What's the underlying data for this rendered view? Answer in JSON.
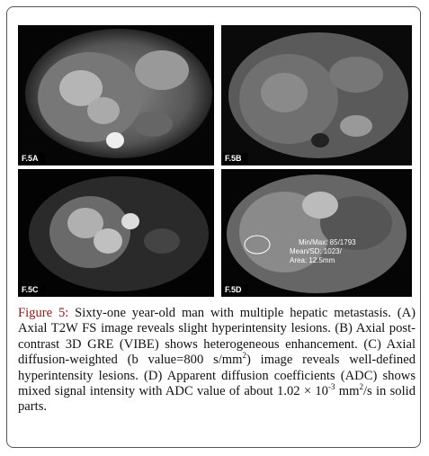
{
  "figure": {
    "panels": [
      {
        "label": "F.5A"
      },
      {
        "label": "F.5B"
      },
      {
        "label": "F.5C"
      },
      {
        "label": "F.5D",
        "roi_text": [
          "Min/Max: 85/1793",
          "Mean/SD: 1023/",
          "Area: 12.5mm"
        ]
      }
    ],
    "caption": {
      "label": "Figure 5:",
      "parts": [
        " Sixty-one year-old man with multiple hepatic metastasis. (A) Axial T2W FS image reveals slight hyperintensity lesions. (B) Axial post-contrast 3D GRE (VIBE) shows heterogeneous enhancement. (C) Axial diffusion-weighted (b value=800 s/mm",
        "2",
        ") image reveals well-defined hyperintensity lesions. (D) Apparent diffusion coefficients (ADC) shows mixed signal intensity with ADC value of about 1.02 × 10",
        "-3",
        " mm",
        "2",
        "/s in solid parts."
      ]
    }
  }
}
